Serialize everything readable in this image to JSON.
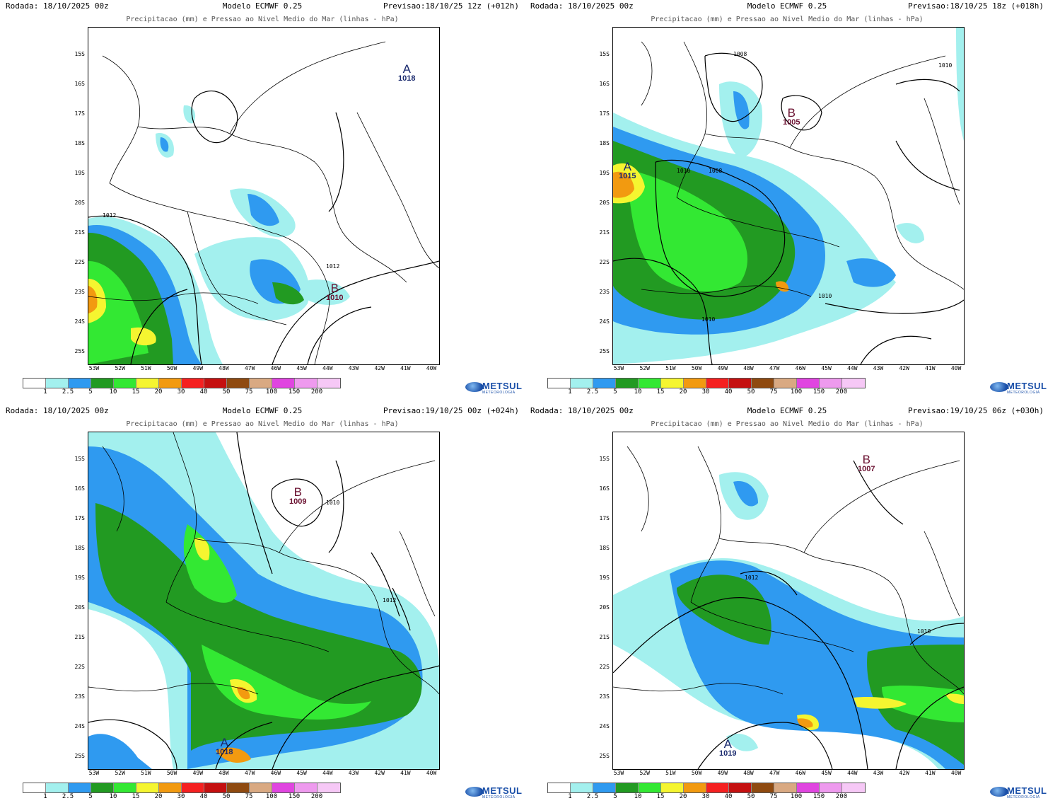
{
  "common": {
    "subtitle": "Precipitacao (mm) e Pressao ao Nivel Medio do Mar (linhas - hPa)",
    "lat_labels": [
      "15S",
      "16S",
      "17S",
      "18S",
      "19S",
      "20S",
      "21S",
      "22S",
      "23S",
      "24S",
      "25S"
    ],
    "lon_labels": [
      "53W",
      "52W",
      "51W",
      "50W",
      "49W",
      "48W",
      "47W",
      "46W",
      "45W",
      "44W",
      "43W",
      "42W",
      "41W",
      "40W"
    ],
    "colorbar": {
      "colors": [
        "#ffffff",
        "#a3f0ee",
        "#2f9af0",
        "#229a22",
        "#33e833",
        "#f5f530",
        "#f29a10",
        "#f52020",
        "#c51010",
        "#8f4a10",
        "#d9a982",
        "#e045e0",
        "#ee9aee",
        "#f6c8f6"
      ],
      "labels": [
        "1",
        "2.5",
        "5",
        "10",
        "15",
        "20",
        "30",
        "40",
        "50",
        "75",
        "100",
        "150",
        "200"
      ]
    },
    "logo": {
      "text": "METSUL",
      "subtext": "METEOROLOGIA"
    }
  },
  "panels": [
    {
      "rodada": "Rodada: 18/10/2025 00z",
      "modelo": "Modelo ECMWF 0.25",
      "previsao": "Previsao:18/10/25 12z (+012h)",
      "pressure_labels": [
        {
          "letter": "A",
          "value": "1018",
          "color": "#1a2a6e"
        },
        {
          "letter": "B",
          "value": "1010",
          "color": "#6a1030"
        }
      ],
      "isobar_labels": [
        "1012",
        "1012"
      ]
    },
    {
      "rodada": "Rodada: 18/10/2025 00z",
      "modelo": "Modelo ECMWF 0.25",
      "previsao": "Previsao:18/10/25 18z (+018h)",
      "pressure_labels": [
        {
          "letter": "B",
          "value": "1005",
          "color": "#6a1030"
        },
        {
          "letter": "A",
          "value": "1015",
          "color": "#1a2a6e"
        }
      ],
      "isobar_labels": [
        "1008",
        "1010",
        "1010",
        "1008",
        "1010",
        "1010"
      ]
    },
    {
      "rodada": "Rodada: 18/10/2025 00z",
      "modelo": "Modelo ECMWF 0.25",
      "previsao": "Previsao:19/10/25 00z (+024h)",
      "pressure_labels": [
        {
          "letter": "B",
          "value": "1009",
          "color": "#6a1030"
        },
        {
          "letter": "A",
          "value": "1018",
          "color": "#1a2a6e"
        }
      ],
      "isobar_labels": [
        "1010",
        "1012"
      ]
    },
    {
      "rodada": "Rodada: 18/10/2025 00z",
      "modelo": "Modelo ECMWF 0.25",
      "previsao": "Previsao:19/10/25 06z (+030h)",
      "pressure_labels": [
        {
          "letter": "B",
          "value": "1007",
          "color": "#6a1030"
        },
        {
          "letter": "A",
          "value": "1019",
          "color": "#1a2a6e"
        }
      ],
      "isobar_labels": [
        "1012",
        "1010"
      ]
    }
  ]
}
